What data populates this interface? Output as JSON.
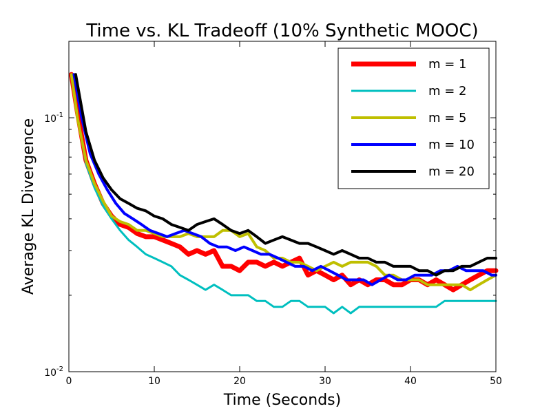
{
  "chart_data": {
    "type": "line",
    "title": "Time vs. KL Tradeoff (10% Synthetic MOOC)",
    "xlabel": "Time (Seconds)",
    "ylabel": "Average KL Divergence",
    "xlim": [
      0,
      50
    ],
    "ylim": [
      0.01,
      0.2
    ],
    "yscale": "log",
    "grid": false,
    "legend_position": "top-right",
    "x_ticks": [
      0,
      10,
      20,
      30,
      40,
      50
    ],
    "x_tick_labels": [
      "0",
      "10",
      "20",
      "30",
      "40",
      "50"
    ],
    "y_tick_labels": [
      {
        "value": 0.1,
        "base": "10",
        "exp": "-1"
      },
      {
        "value": 0.01,
        "base": "10",
        "exp": "-2"
      }
    ],
    "series": [
      {
        "name": "m = 1",
        "color": "#ff0000",
        "width": 7,
        "x": [
          0.3,
          1,
          2,
          3,
          4,
          5,
          6,
          7,
          8,
          9,
          10,
          11,
          12,
          13,
          14,
          15,
          16,
          17,
          18,
          19,
          20,
          21,
          22,
          23,
          24,
          25,
          26,
          27,
          28,
          29,
          30,
          31,
          32,
          33,
          34,
          35,
          36,
          37,
          38,
          39,
          40,
          41,
          42,
          43,
          44,
          45,
          46,
          47,
          48,
          49,
          50
        ],
        "y": [
          0.148,
          0.105,
          0.068,
          0.055,
          0.046,
          0.041,
          0.038,
          0.037,
          0.035,
          0.034,
          0.034,
          0.033,
          0.032,
          0.031,
          0.029,
          0.03,
          0.029,
          0.03,
          0.026,
          0.026,
          0.025,
          0.027,
          0.027,
          0.026,
          0.027,
          0.026,
          0.027,
          0.028,
          0.024,
          0.025,
          0.024,
          0.023,
          0.024,
          0.022,
          0.023,
          0.022,
          0.023,
          0.023,
          0.022,
          0.022,
          0.023,
          0.023,
          0.022,
          0.023,
          0.022,
          0.021,
          0.022,
          0.023,
          0.024,
          0.025,
          0.025
        ]
      },
      {
        "name": "m = 2",
        "color": "#00bfbf",
        "width": 3,
        "x": [
          0.3,
          1,
          2,
          3,
          4,
          5,
          6,
          7,
          8,
          9,
          10,
          11,
          12,
          13,
          14,
          15,
          16,
          17,
          18,
          19,
          20,
          21,
          22,
          23,
          24,
          25,
          26,
          27,
          28,
          29,
          30,
          31,
          32,
          33,
          34,
          35,
          36,
          37,
          38,
          39,
          40,
          41,
          42,
          43,
          44,
          45,
          46,
          47,
          48,
          49,
          50
        ],
        "y": [
          0.148,
          0.102,
          0.066,
          0.053,
          0.045,
          0.04,
          0.036,
          0.033,
          0.031,
          0.029,
          0.028,
          0.027,
          0.026,
          0.024,
          0.023,
          0.022,
          0.021,
          0.022,
          0.021,
          0.02,
          0.02,
          0.02,
          0.019,
          0.019,
          0.018,
          0.018,
          0.019,
          0.019,
          0.018,
          0.018,
          0.018,
          0.017,
          0.018,
          0.017,
          0.018,
          0.018,
          0.018,
          0.018,
          0.018,
          0.018,
          0.018,
          0.018,
          0.018,
          0.018,
          0.019,
          0.019,
          0.019,
          0.019,
          0.019,
          0.019,
          0.019
        ]
      },
      {
        "name": "m = 5",
        "color": "#bfbf00",
        "width": 4,
        "x": [
          0.3,
          1,
          2,
          3,
          4,
          5,
          6,
          7,
          8,
          9,
          10,
          11,
          12,
          13,
          14,
          15,
          16,
          17,
          18,
          19,
          20,
          21,
          22,
          23,
          24,
          25,
          26,
          27,
          28,
          29,
          30,
          31,
          32,
          33,
          34,
          35,
          36,
          37,
          38,
          39,
          40,
          41,
          42,
          43,
          44,
          45,
          46,
          47,
          48,
          49,
          50
        ],
        "y": [
          0.148,
          0.1,
          0.068,
          0.055,
          0.047,
          0.041,
          0.039,
          0.038,
          0.036,
          0.036,
          0.035,
          0.034,
          0.034,
          0.034,
          0.035,
          0.034,
          0.034,
          0.034,
          0.036,
          0.036,
          0.034,
          0.035,
          0.031,
          0.03,
          0.028,
          0.028,
          0.027,
          0.027,
          0.026,
          0.025,
          0.026,
          0.027,
          0.026,
          0.027,
          0.027,
          0.027,
          0.026,
          0.024,
          0.024,
          0.023,
          0.023,
          0.023,
          0.022,
          0.022,
          0.022,
          0.022,
          0.022,
          0.021,
          0.022,
          0.023,
          0.024
        ]
      },
      {
        "name": "m = 10",
        "color": "#0000ff",
        "width": 4,
        "x": [
          0.6,
          1.5,
          2.5,
          3.5,
          4.5,
          5.5,
          6.5,
          7.5,
          8.5,
          9.5,
          10.5,
          11.5,
          12.5,
          13.5,
          14.5,
          15.5,
          16.5,
          17.5,
          18.5,
          19.5,
          20.5,
          21.5,
          22.5,
          23.5,
          24.5,
          25.5,
          26.5,
          27.5,
          28.5,
          29.5,
          30.5,
          31.5,
          32.5,
          33.5,
          34.5,
          35.5,
          36.5,
          37.5,
          38.5,
          39.5,
          40.5,
          41.5,
          42.5,
          43.5,
          44.5,
          45.5,
          46.5,
          47.5,
          48.5,
          49.5,
          50
        ],
        "y": [
          0.148,
          0.1,
          0.072,
          0.06,
          0.052,
          0.046,
          0.042,
          0.04,
          0.038,
          0.036,
          0.035,
          0.034,
          0.035,
          0.036,
          0.035,
          0.034,
          0.032,
          0.031,
          0.031,
          0.03,
          0.031,
          0.03,
          0.029,
          0.029,
          0.028,
          0.027,
          0.026,
          0.026,
          0.025,
          0.026,
          0.025,
          0.024,
          0.023,
          0.023,
          0.023,
          0.022,
          0.023,
          0.024,
          0.023,
          0.023,
          0.024,
          0.024,
          0.024,
          0.025,
          0.025,
          0.026,
          0.025,
          0.025,
          0.025,
          0.024,
          0.024
        ]
      },
      {
        "name": "m = 20",
        "color": "#000000",
        "width": 4,
        "x": [
          0.8,
          2,
          3,
          4,
          5,
          6,
          7,
          8,
          9,
          10,
          11,
          12,
          13,
          14,
          15,
          16,
          17,
          18,
          19,
          20,
          21,
          22,
          23,
          24,
          25,
          26,
          27,
          28,
          29,
          30,
          31,
          32,
          33,
          34,
          35,
          36,
          37,
          38,
          39,
          40,
          41,
          42,
          43,
          44,
          45,
          46,
          47,
          48,
          49,
          50
        ],
        "y": [
          0.148,
          0.088,
          0.068,
          0.058,
          0.052,
          0.048,
          0.046,
          0.044,
          0.043,
          0.041,
          0.04,
          0.038,
          0.037,
          0.036,
          0.038,
          0.039,
          0.04,
          0.038,
          0.036,
          0.035,
          0.036,
          0.034,
          0.032,
          0.033,
          0.034,
          0.033,
          0.032,
          0.032,
          0.031,
          0.03,
          0.029,
          0.03,
          0.029,
          0.028,
          0.028,
          0.027,
          0.027,
          0.026,
          0.026,
          0.026,
          0.025,
          0.025,
          0.024,
          0.025,
          0.025,
          0.026,
          0.026,
          0.027,
          0.028,
          0.028
        ]
      }
    ]
  }
}
